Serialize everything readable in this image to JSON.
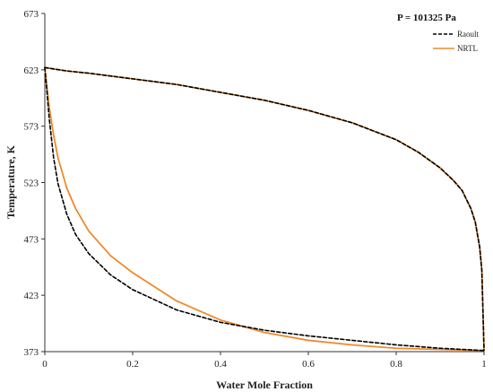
{
  "chart_data": {
    "type": "line",
    "title": "",
    "annotation": "P = 101325 Pa",
    "xlabel": "Water Mole Fraction",
    "ylabel": "Temperature, K",
    "xlim": [
      0,
      1
    ],
    "ylim": [
      373,
      673
    ],
    "xticks": [
      "0",
      "0.2",
      "0.4",
      "0.6",
      "0.8",
      "1"
    ],
    "xtick_values": [
      0,
      0.2,
      0.4,
      0.6,
      0.8,
      1
    ],
    "yticks": [
      "373",
      "423",
      "473",
      "523",
      "573",
      "623",
      "673"
    ],
    "ytick_values": [
      373,
      423,
      473,
      523,
      573,
      623,
      673
    ],
    "grid": false,
    "legend_position": "top-right",
    "series": [
      {
        "name": "Raoult",
        "color": "#000000",
        "style": "dashed",
        "curves": [
          {
            "x": [
              0,
              0.05,
              0.1,
              0.2,
              0.3,
              0.4,
              0.5,
              0.6,
              0.7,
              0.8,
              0.85,
              0.9,
              0.93,
              0.95,
              0.97,
              0.98,
              0.99,
              0.995,
              1
            ],
            "y": [
              625,
              622,
              620,
              615,
              610,
              603,
              596,
              587,
              576,
              561,
              550,
              536,
              525,
              516,
              500,
              488,
              466,
              445,
              374
            ]
          },
          {
            "x": [
              0,
              0.01,
              0.02,
              0.03,
              0.05,
              0.07,
              0.1,
              0.15,
              0.2,
              0.3,
              0.4,
              0.5,
              0.6,
              0.7,
              0.8,
              0.9,
              1
            ],
            "y": [
              625,
              580,
              545,
              522,
              495,
              477,
              460,
              441,
              428,
              410,
              399,
              392,
              387,
              383,
              379,
              376,
              374
            ]
          }
        ]
      },
      {
        "name": "NRTL",
        "color": "#ee8a2a",
        "style": "solid",
        "curves": [
          {
            "x": [
              0,
              0.05,
              0.1,
              0.2,
              0.3,
              0.4,
              0.5,
              0.6,
              0.7,
              0.8,
              0.85,
              0.9,
              0.93,
              0.95,
              0.97,
              0.98,
              0.99,
              0.995,
              1
            ],
            "y": [
              625,
              622,
              620,
              615,
              610,
              603,
              596,
              587,
              576,
              561,
              550,
              536,
              525,
              516,
              500,
              488,
              466,
              445,
              374
            ]
          },
          {
            "x": [
              0,
              0.01,
              0.02,
              0.03,
              0.05,
              0.07,
              0.1,
              0.15,
              0.2,
              0.3,
              0.4,
              0.5,
              0.6,
              0.7,
              0.8,
              0.9,
              1
            ],
            "y": [
              625,
              590,
              565,
              545,
              518,
              500,
              480,
              458,
              443,
              418,
              401,
              390,
              383,
              379,
              376,
              375,
              374
            ]
          }
        ]
      }
    ]
  }
}
